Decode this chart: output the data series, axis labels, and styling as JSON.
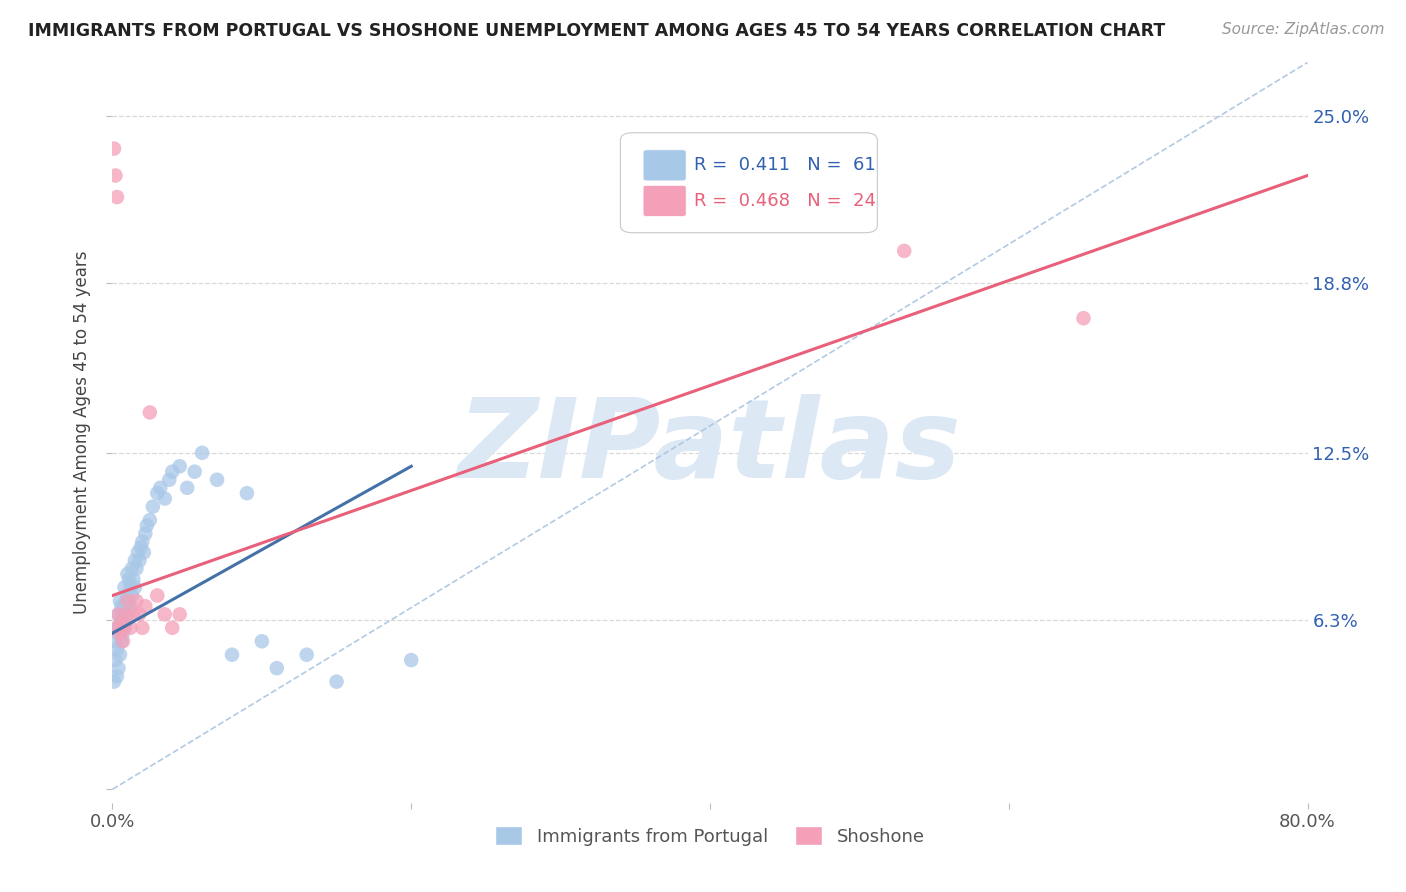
{
  "title": "IMMIGRANTS FROM PORTUGAL VS SHOSHONE UNEMPLOYMENT AMONG AGES 45 TO 54 YEARS CORRELATION CHART",
  "source": "Source: ZipAtlas.com",
  "ylabel": "Unemployment Among Ages 45 to 54 years",
  "xlim": [
    0.0,
    0.8
  ],
  "ylim": [
    -0.005,
    0.27
  ],
  "yticks": [
    0.0,
    0.063,
    0.125,
    0.188,
    0.25
  ],
  "ytick_labels": [
    "",
    "6.3%",
    "12.5%",
    "18.8%",
    "25.0%"
  ],
  "blue_R": 0.411,
  "blue_N": 61,
  "pink_R": 0.468,
  "pink_N": 24,
  "blue_color": "#a8c8e8",
  "pink_color": "#f4a0b8",
  "blue_line_color": "#4472a8",
  "pink_line_color": "#e8607a",
  "watermark_color": "#dce8f4",
  "background_color": "#ffffff",
  "grid_color": "#d0d0d0",
  "blue_x": [
    0.001,
    0.002,
    0.002,
    0.003,
    0.003,
    0.003,
    0.004,
    0.004,
    0.004,
    0.005,
    0.005,
    0.005,
    0.006,
    0.006,
    0.006,
    0.007,
    0.007,
    0.008,
    0.008,
    0.008,
    0.009,
    0.009,
    0.01,
    0.01,
    0.01,
    0.011,
    0.011,
    0.012,
    0.012,
    0.013,
    0.013,
    0.014,
    0.015,
    0.015,
    0.016,
    0.017,
    0.018,
    0.019,
    0.02,
    0.021,
    0.022,
    0.023,
    0.025,
    0.027,
    0.03,
    0.032,
    0.035,
    0.038,
    0.04,
    0.045,
    0.05,
    0.055,
    0.06,
    0.07,
    0.08,
    0.09,
    0.1,
    0.11,
    0.13,
    0.15,
    0.2
  ],
  "blue_y": [
    0.04,
    0.055,
    0.048,
    0.042,
    0.052,
    0.06,
    0.045,
    0.058,
    0.065,
    0.05,
    0.06,
    0.07,
    0.055,
    0.062,
    0.068,
    0.058,
    0.065,
    0.06,
    0.068,
    0.075,
    0.062,
    0.07,
    0.065,
    0.072,
    0.08,
    0.07,
    0.078,
    0.068,
    0.075,
    0.072,
    0.082,
    0.078,
    0.075,
    0.085,
    0.082,
    0.088,
    0.085,
    0.09,
    0.092,
    0.088,
    0.095,
    0.098,
    0.1,
    0.105,
    0.11,
    0.112,
    0.108,
    0.115,
    0.118,
    0.12,
    0.112,
    0.118,
    0.125,
    0.115,
    0.05,
    0.11,
    0.055,
    0.045,
    0.05,
    0.04,
    0.048
  ],
  "pink_x": [
    0.001,
    0.002,
    0.003,
    0.003,
    0.004,
    0.005,
    0.006,
    0.007,
    0.008,
    0.009,
    0.01,
    0.012,
    0.014,
    0.016,
    0.018,
    0.02,
    0.022,
    0.025,
    0.03,
    0.035,
    0.04,
    0.045,
    0.53,
    0.65
  ],
  "pink_y": [
    0.238,
    0.228,
    0.22,
    0.06,
    0.065,
    0.058,
    0.062,
    0.055,
    0.06,
    0.065,
    0.07,
    0.06,
    0.065,
    0.07,
    0.065,
    0.06,
    0.068,
    0.14,
    0.072,
    0.065,
    0.06,
    0.065,
    0.2,
    0.175
  ],
  "blue_line_x": [
    0.0,
    0.2
  ],
  "blue_line_y": [
    0.058,
    0.12
  ],
  "pink_line_x": [
    0.0,
    0.8
  ],
  "pink_line_y": [
    0.072,
    0.228
  ],
  "diag_line_x": [
    0.0,
    0.8
  ],
  "diag_line_y": [
    0.0,
    0.27
  ]
}
